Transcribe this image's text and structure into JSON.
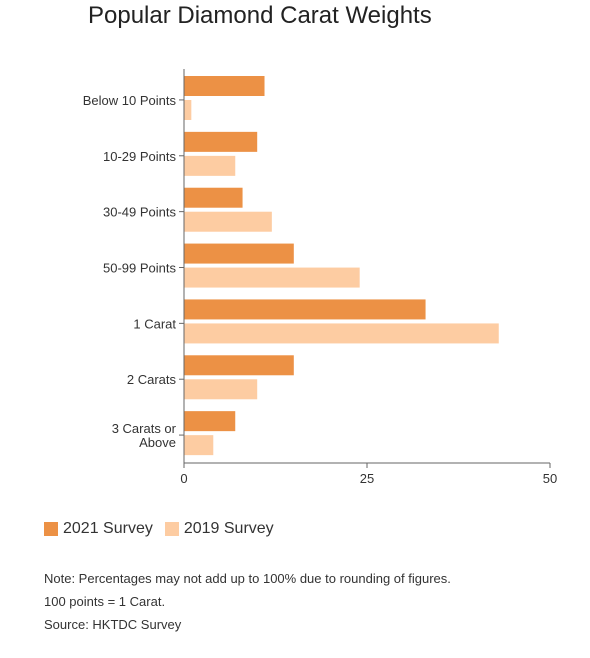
{
  "chart_data": {
    "type": "bar",
    "orientation": "horizontal",
    "title": "Popular Diamond Carat Weights",
    "categories": [
      "Below 10 Points",
      "10-29 Points",
      "30-49 Points",
      "50-99 Points",
      "1 Carat",
      "2 Carats",
      "3 Carats or Above"
    ],
    "category_label_lines": [
      [
        "Below 10 Points"
      ],
      [
        "10-29 Points"
      ],
      [
        "30-49 Points"
      ],
      [
        "50-99 Points"
      ],
      [
        "1 Carat"
      ],
      [
        "2 Carats"
      ],
      [
        "3 Carats or",
        "Above"
      ]
    ],
    "series": [
      {
        "name": "2021 Survey",
        "color": "#EC9145",
        "values": [
          11,
          10,
          8,
          15,
          33,
          15,
          7
        ]
      },
      {
        "name": "2019 Survey",
        "color": "#FDCCA2",
        "values": [
          1,
          7,
          12,
          24,
          43,
          10,
          4
        ]
      }
    ],
    "xlim": [
      0,
      50
    ],
    "xticks": [
      0,
      25,
      50
    ],
    "xtick_labels": [
      "0",
      "25",
      "50"
    ],
    "grid": false,
    "legend_position": "bottom-left"
  },
  "notes": [
    "Note: Percentages may not add up to 100% due to rounding of figures.",
    "100 points = 1 Carat.",
    "Source: HKTDC Survey"
  ]
}
